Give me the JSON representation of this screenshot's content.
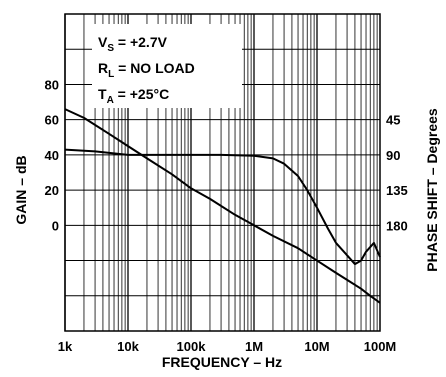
{
  "chart_data": {
    "type": "line",
    "x_scale": "log",
    "x_range": [
      1000,
      100000000
    ],
    "xlabel": "FREQUENCY – Hz",
    "x_ticks": [
      {
        "value": 1000,
        "label": "1k"
      },
      {
        "value": 10000,
        "label": "10k"
      },
      {
        "value": 100000,
        "label": "100k"
      },
      {
        "value": 1000000,
        "label": "1M"
      },
      {
        "value": 10000000,
        "label": "10M"
      },
      {
        "value": 100000000,
        "label": "100M"
      }
    ],
    "ylabel_left": "GAIN – dB",
    "y_left_range": [
      -60,
      120
    ],
    "y_left_ticks": [
      {
        "value": 0,
        "label": "0"
      },
      {
        "value": 20,
        "label": "20"
      },
      {
        "value": 40,
        "label": "40"
      },
      {
        "value": 60,
        "label": "60"
      },
      {
        "value": 80,
        "label": "80"
      }
    ],
    "ylabel_right": "PHASE SHIFT – Degrees",
    "y_right_ticks": [
      {
        "value": 45,
        "label": "45"
      },
      {
        "value": 90,
        "label": "90"
      },
      {
        "value": 135,
        "label": "135"
      },
      {
        "value": 180,
        "label": "180"
      }
    ],
    "grid": true,
    "annotations": [
      {
        "main": "V",
        "sub": "S",
        "rest": " = +2.7V"
      },
      {
        "main": "R",
        "sub": "L",
        "rest": " = NO LOAD"
      },
      {
        "main": "T",
        "sub": "A",
        "rest": " = +25°C"
      }
    ],
    "series": [
      {
        "x": [
          1000,
          2000,
          5000,
          10000,
          20000,
          50000,
          100000,
          200000,
          500000,
          1000000,
          2000000,
          5000000,
          10000000,
          20000000,
          30000000,
          50000000,
          70000000,
          100000000
        ],
        "y": [
          66,
          61,
          52,
          45,
          38,
          29,
          21,
          15,
          6,
          0,
          -6,
          -13,
          -20,
          -27,
          -31,
          -36,
          -40,
          -44
        ]
      },
      {
        "x": [
          1000,
          3000,
          10000,
          30000,
          100000,
          300000,
          1000000,
          2000000,
          3000000,
          5000000,
          7000000,
          10000000,
          15000000,
          20000000,
          30000000,
          40000000,
          50000000,
          60000000,
          80000000,
          100000000
        ],
        "y": [
          43,
          42,
          40,
          40,
          40,
          40,
          39.5,
          38,
          35,
          28,
          20,
          10,
          -2,
          -10,
          -17,
          -22,
          -20,
          -15,
          -10,
          -18
        ]
      }
    ]
  }
}
